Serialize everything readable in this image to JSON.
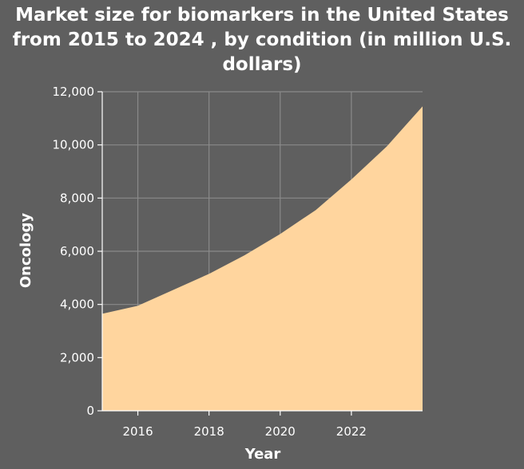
{
  "colors": {
    "background": "#5f5f5f",
    "area_fill": "#ffd59e",
    "grid": "#8a8a8a",
    "axis": "#ffffff",
    "text": "#ffffff"
  },
  "chart_data": {
    "type": "area",
    "title": "Market size for biomarkers in the United States from 2015 to 2024 , by condition (in million U.S. dollars)",
    "xlabel": "Year",
    "ylabel": "Oncology",
    "x": [
      2015,
      2016,
      2017,
      2018,
      2019,
      2020,
      2021,
      2022,
      2023,
      2024
    ],
    "series": [
      {
        "values": [
          3650,
          3950,
          4550,
          5150,
          5850,
          6650,
          7550,
          8700,
          9950,
          11450
        ]
      }
    ],
    "xlim": [
      2015,
      2024
    ],
    "ylim": [
      0,
      12000
    ],
    "xticks": [
      2016,
      2018,
      2020,
      2022
    ],
    "xtick_labels": [
      "2016",
      "2018",
      "2020",
      "2022"
    ],
    "yticks": [
      0,
      2000,
      4000,
      6000,
      8000,
      10000,
      12000
    ],
    "ytick_labels": [
      "0",
      "2,000",
      "4,000",
      "6,000",
      "8,000",
      "10,000",
      "12,000"
    ],
    "grid": true,
    "legend": false
  }
}
